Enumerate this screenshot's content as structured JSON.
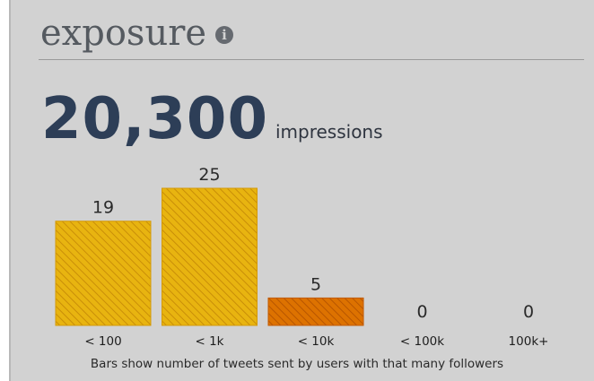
{
  "widget": {
    "title": "exposure",
    "info_icon": "info-icon",
    "impressions_value": "20,300",
    "impressions_label": "impressions",
    "footnote": "Bars show number of tweets sent by users with that many followers"
  },
  "colors": {
    "bar_light": "#e8b410",
    "bar_dark": "#d86800",
    "headline": "#2d3e57",
    "panel": "#d2d2d2"
  },
  "chart_data": {
    "type": "bar",
    "categories": [
      "< 100",
      "< 1k",
      "< 10k",
      "< 100k",
      "100k+"
    ],
    "values": [
      19,
      25,
      5,
      0,
      0
    ],
    "value_labels": [
      "19",
      "25",
      "5",
      "0",
      "0"
    ],
    "bar_styles": [
      "light",
      "light",
      "dark",
      "light",
      "light"
    ],
    "ylim": [
      0,
      25
    ],
    "grid": false,
    "legend": "none",
    "title": "",
    "xlabel": "",
    "ylabel": ""
  }
}
